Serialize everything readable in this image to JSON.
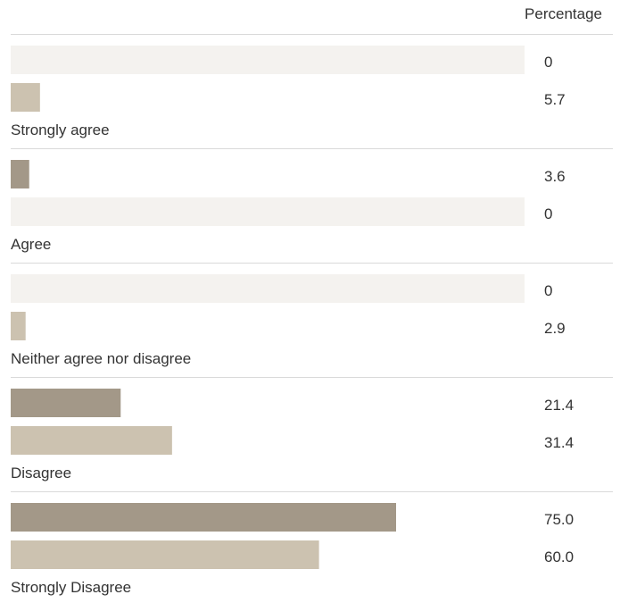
{
  "chart_data": {
    "type": "bar",
    "orientation": "horizontal",
    "value_column_header": "Percentage",
    "categories": [
      "Strongly agree",
      "Agree",
      "Neither agree nor disagree",
      "Disagree",
      "Strongly Disagree"
    ],
    "series": [
      {
        "color": "#a39888",
        "values": [
          0,
          3.6,
          0,
          21.4,
          75.0
        ]
      },
      {
        "color": "#ccc2b0",
        "values": [
          5.7,
          0,
          2.9,
          31.4,
          60.0
        ]
      }
    ],
    "value_labels": [
      [
        "0",
        "5.7"
      ],
      [
        "3.6",
        "0"
      ],
      [
        "0",
        "2.9"
      ],
      [
        "21.4",
        "31.4"
      ],
      [
        "75.0",
        "60.0"
      ]
    ],
    "xlim": [
      0,
      100
    ],
    "zero_bar_color": "#f4f2ef",
    "divider_color": "#d9d9d9",
    "grid": false,
    "legend": "none"
  }
}
